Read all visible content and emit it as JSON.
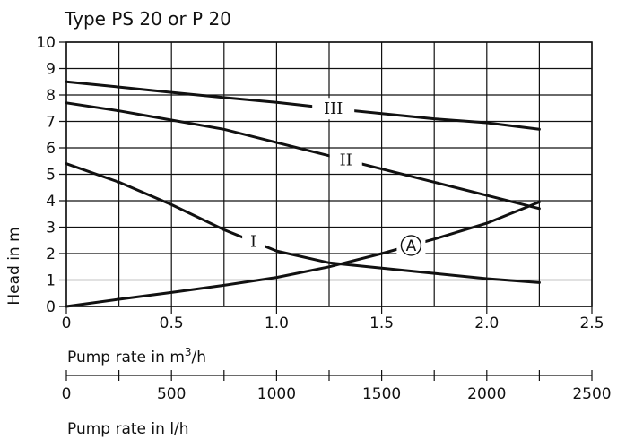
{
  "chart_data": {
    "type": "line",
    "title": "Type PS 20 or P 20",
    "xlabel": "Pump rate in m³/h",
    "xlabel_parts": {
      "base": "Pump rate in m",
      "sup": "3",
      "suffix": "/h"
    },
    "xlabel2": "Pump rate in l/h",
    "ylabel": "Head in m",
    "xlim": [
      0,
      2.5
    ],
    "ylim": [
      0,
      10
    ],
    "x_ticks": [
      0,
      0.5,
      1.0,
      1.5,
      2.0,
      2.5
    ],
    "x_tick_labels": [
      "0",
      "0.5",
      "1.0",
      "1.5",
      "2.0",
      "2.5"
    ],
    "x_grid_step": 0.25,
    "y_ticks": [
      0,
      1,
      2,
      3,
      4,
      5,
      6,
      7,
      8,
      9,
      10
    ],
    "y_tick_labels": [
      "0",
      "1",
      "2",
      "3",
      "4",
      "5",
      "6",
      "7",
      "8",
      "9",
      "10"
    ],
    "x2_ticks": [
      0,
      500,
      1000,
      1500,
      2000,
      2500
    ],
    "x2_tick_labels": [
      "0",
      "500",
      "1000",
      "1500",
      "2000",
      "2500"
    ],
    "x2_minor_step": 250,
    "grid": true,
    "series": [
      {
        "name": "III",
        "x": [
          0,
          0.25,
          0.5,
          0.75,
          1.0,
          1.25,
          1.5,
          1.75,
          2.0,
          2.25
        ],
        "y": [
          8.5,
          8.3,
          8.1,
          7.9,
          7.72,
          7.5,
          7.3,
          7.1,
          6.95,
          6.7
        ]
      },
      {
        "name": "II",
        "x": [
          0,
          0.25,
          0.5,
          0.75,
          1.0,
          1.25,
          1.5,
          1.75,
          2.0,
          2.25
        ],
        "y": [
          7.7,
          7.4,
          7.05,
          6.7,
          6.2,
          5.7,
          5.2,
          4.7,
          4.2,
          3.7
        ]
      },
      {
        "name": "I",
        "x": [
          0,
          0.25,
          0.5,
          0.75,
          1.0,
          1.25,
          1.5,
          1.75,
          2.0,
          2.25
        ],
        "y": [
          5.4,
          4.7,
          3.85,
          2.9,
          2.1,
          1.65,
          1.45,
          1.25,
          1.05,
          0.9
        ]
      },
      {
        "name": "A",
        "x": [
          0,
          0.25,
          0.5,
          0.75,
          1.0,
          1.25,
          1.5,
          1.75,
          2.0,
          2.25
        ],
        "y": [
          0,
          0.27,
          0.53,
          0.8,
          1.1,
          1.5,
          2.0,
          2.55,
          3.15,
          3.95
        ]
      }
    ]
  }
}
